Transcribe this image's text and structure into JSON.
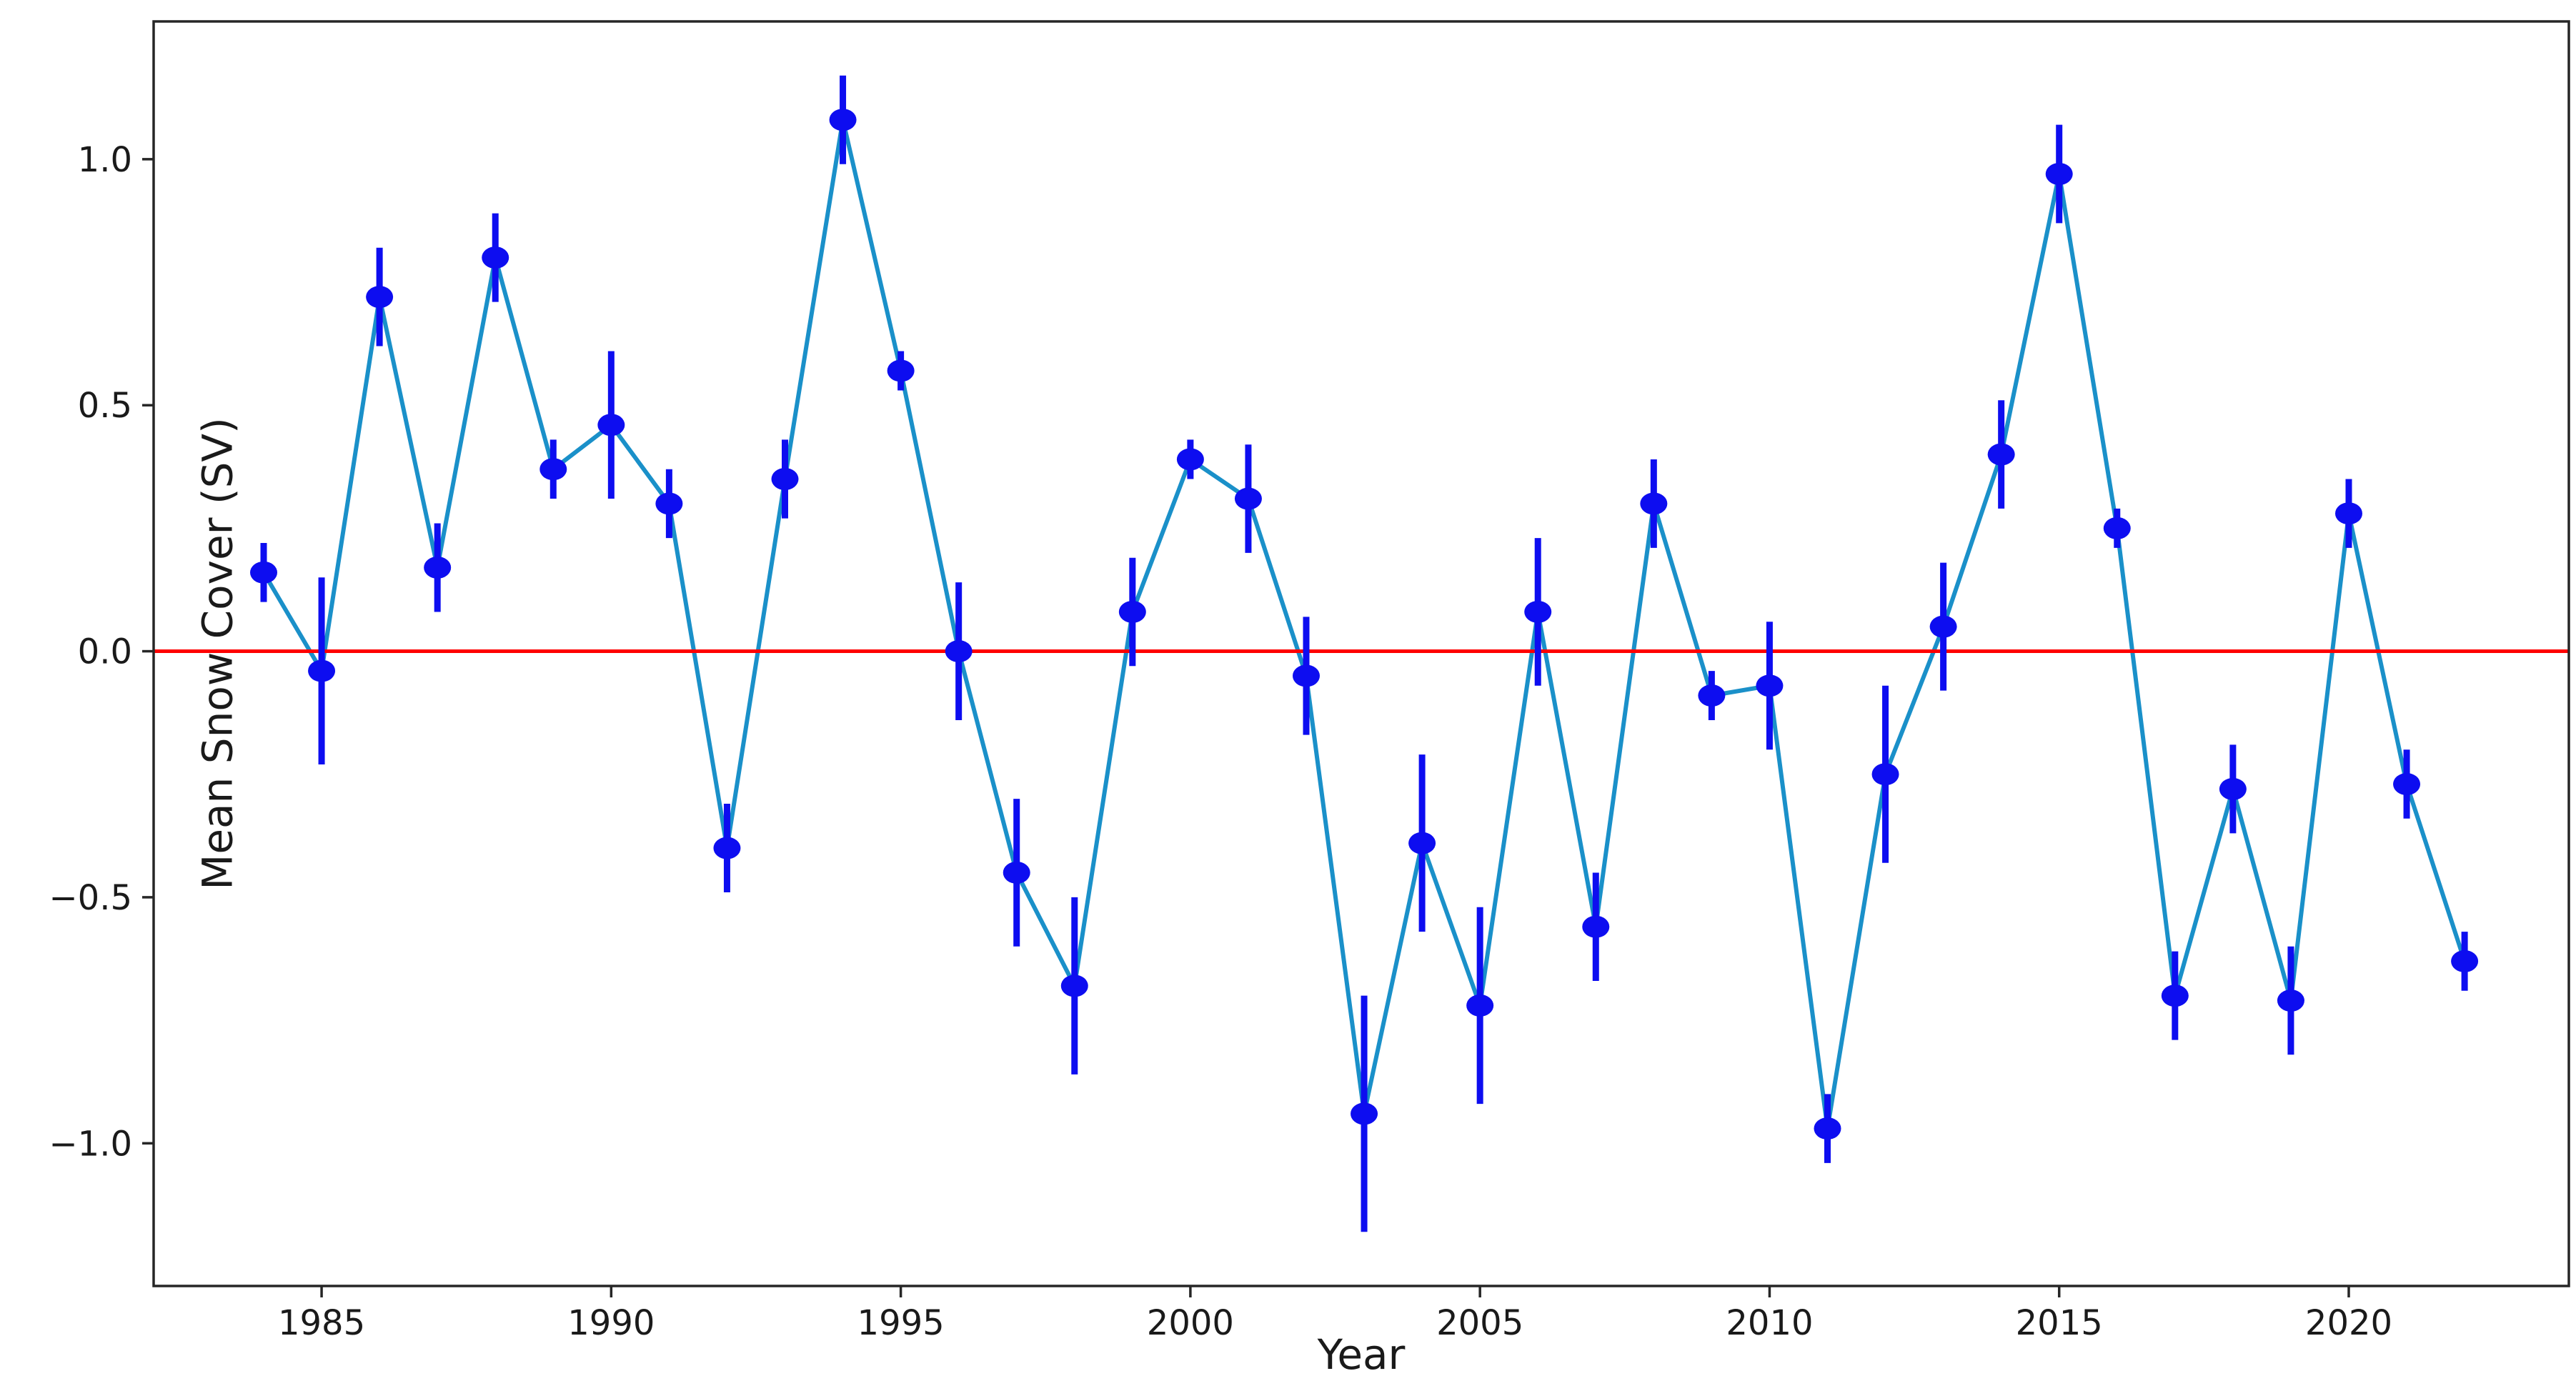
{
  "figure": {
    "xlabel": "Year",
    "ylabel": "Mean Snow Cover (SV)"
  },
  "chart_data": {
    "type": "line",
    "title": "",
    "xlabel": "Year",
    "ylabel": "Mean Snow Cover (SV)",
    "legend_position": "none",
    "grid": false,
    "xlim": [
      1982.1,
      2023.8
    ],
    "ylim": [
      -1.29,
      1.28
    ],
    "x_ticks": [
      1985,
      1990,
      1995,
      2000,
      2005,
      2010,
      2015,
      2020
    ],
    "x_tick_labels": [
      "1985",
      "1990",
      "1995",
      "2000",
      "2005",
      "2010",
      "2015",
      "2020"
    ],
    "y_ticks": [
      1.0,
      0.5,
      0.0,
      -0.5,
      -1.0
    ],
    "y_tick_labels": [
      "1.0",
      "0.5",
      "0.0",
      "−0.5",
      "−1.0"
    ],
    "zero_line": {
      "y": 0.0,
      "color": "#ff0000"
    },
    "style": {
      "line_color": "#1a90c9",
      "marker_color": "#0d0df0",
      "error_bar_color": "#0d0df0",
      "spine_color": "#262626",
      "text_color": "#1a1a1a",
      "background_color": "#ffffff"
    },
    "x": [
      1984,
      1985,
      1986,
      1987,
      1988,
      1989,
      1990,
      1991,
      1992,
      1993,
      1994,
      1995,
      1996,
      1997,
      1998,
      1999,
      2000,
      2001,
      2002,
      2003,
      2004,
      2005,
      2006,
      2007,
      2008,
      2009,
      2010,
      2011,
      2012,
      2013,
      2014,
      2015,
      2016,
      2017,
      2018,
      2019,
      2020,
      2021,
      2022
    ],
    "series": [
      {
        "name": "Mean Snow Cover (SV)",
        "values": [
          0.16,
          -0.04,
          0.72,
          0.17,
          0.8,
          0.37,
          0.46,
          0.3,
          -0.4,
          0.35,
          1.08,
          0.57,
          0.0,
          -0.45,
          -0.68,
          0.08,
          0.39,
          0.31,
          -0.05,
          -0.94,
          -0.39,
          -0.72,
          0.08,
          -0.56,
          0.3,
          -0.09,
          -0.07,
          -0.97,
          -0.25,
          0.05,
          0.4,
          0.97,
          0.25,
          -0.7,
          -0.28,
          -0.71,
          0.28,
          -0.27,
          -0.63
        ],
        "errors": [
          0.06,
          0.19,
          0.1,
          0.09,
          0.09,
          0.06,
          0.15,
          0.07,
          0.09,
          0.08,
          0.09,
          0.04,
          0.14,
          0.15,
          0.18,
          0.11,
          0.04,
          0.11,
          0.12,
          0.24,
          0.18,
          0.2,
          0.15,
          0.11,
          0.09,
          0.05,
          0.13,
          0.07,
          0.18,
          0.13,
          0.11,
          0.1,
          0.04,
          0.09,
          0.09,
          0.11,
          0.07,
          0.07,
          0.06
        ]
      }
    ]
  }
}
